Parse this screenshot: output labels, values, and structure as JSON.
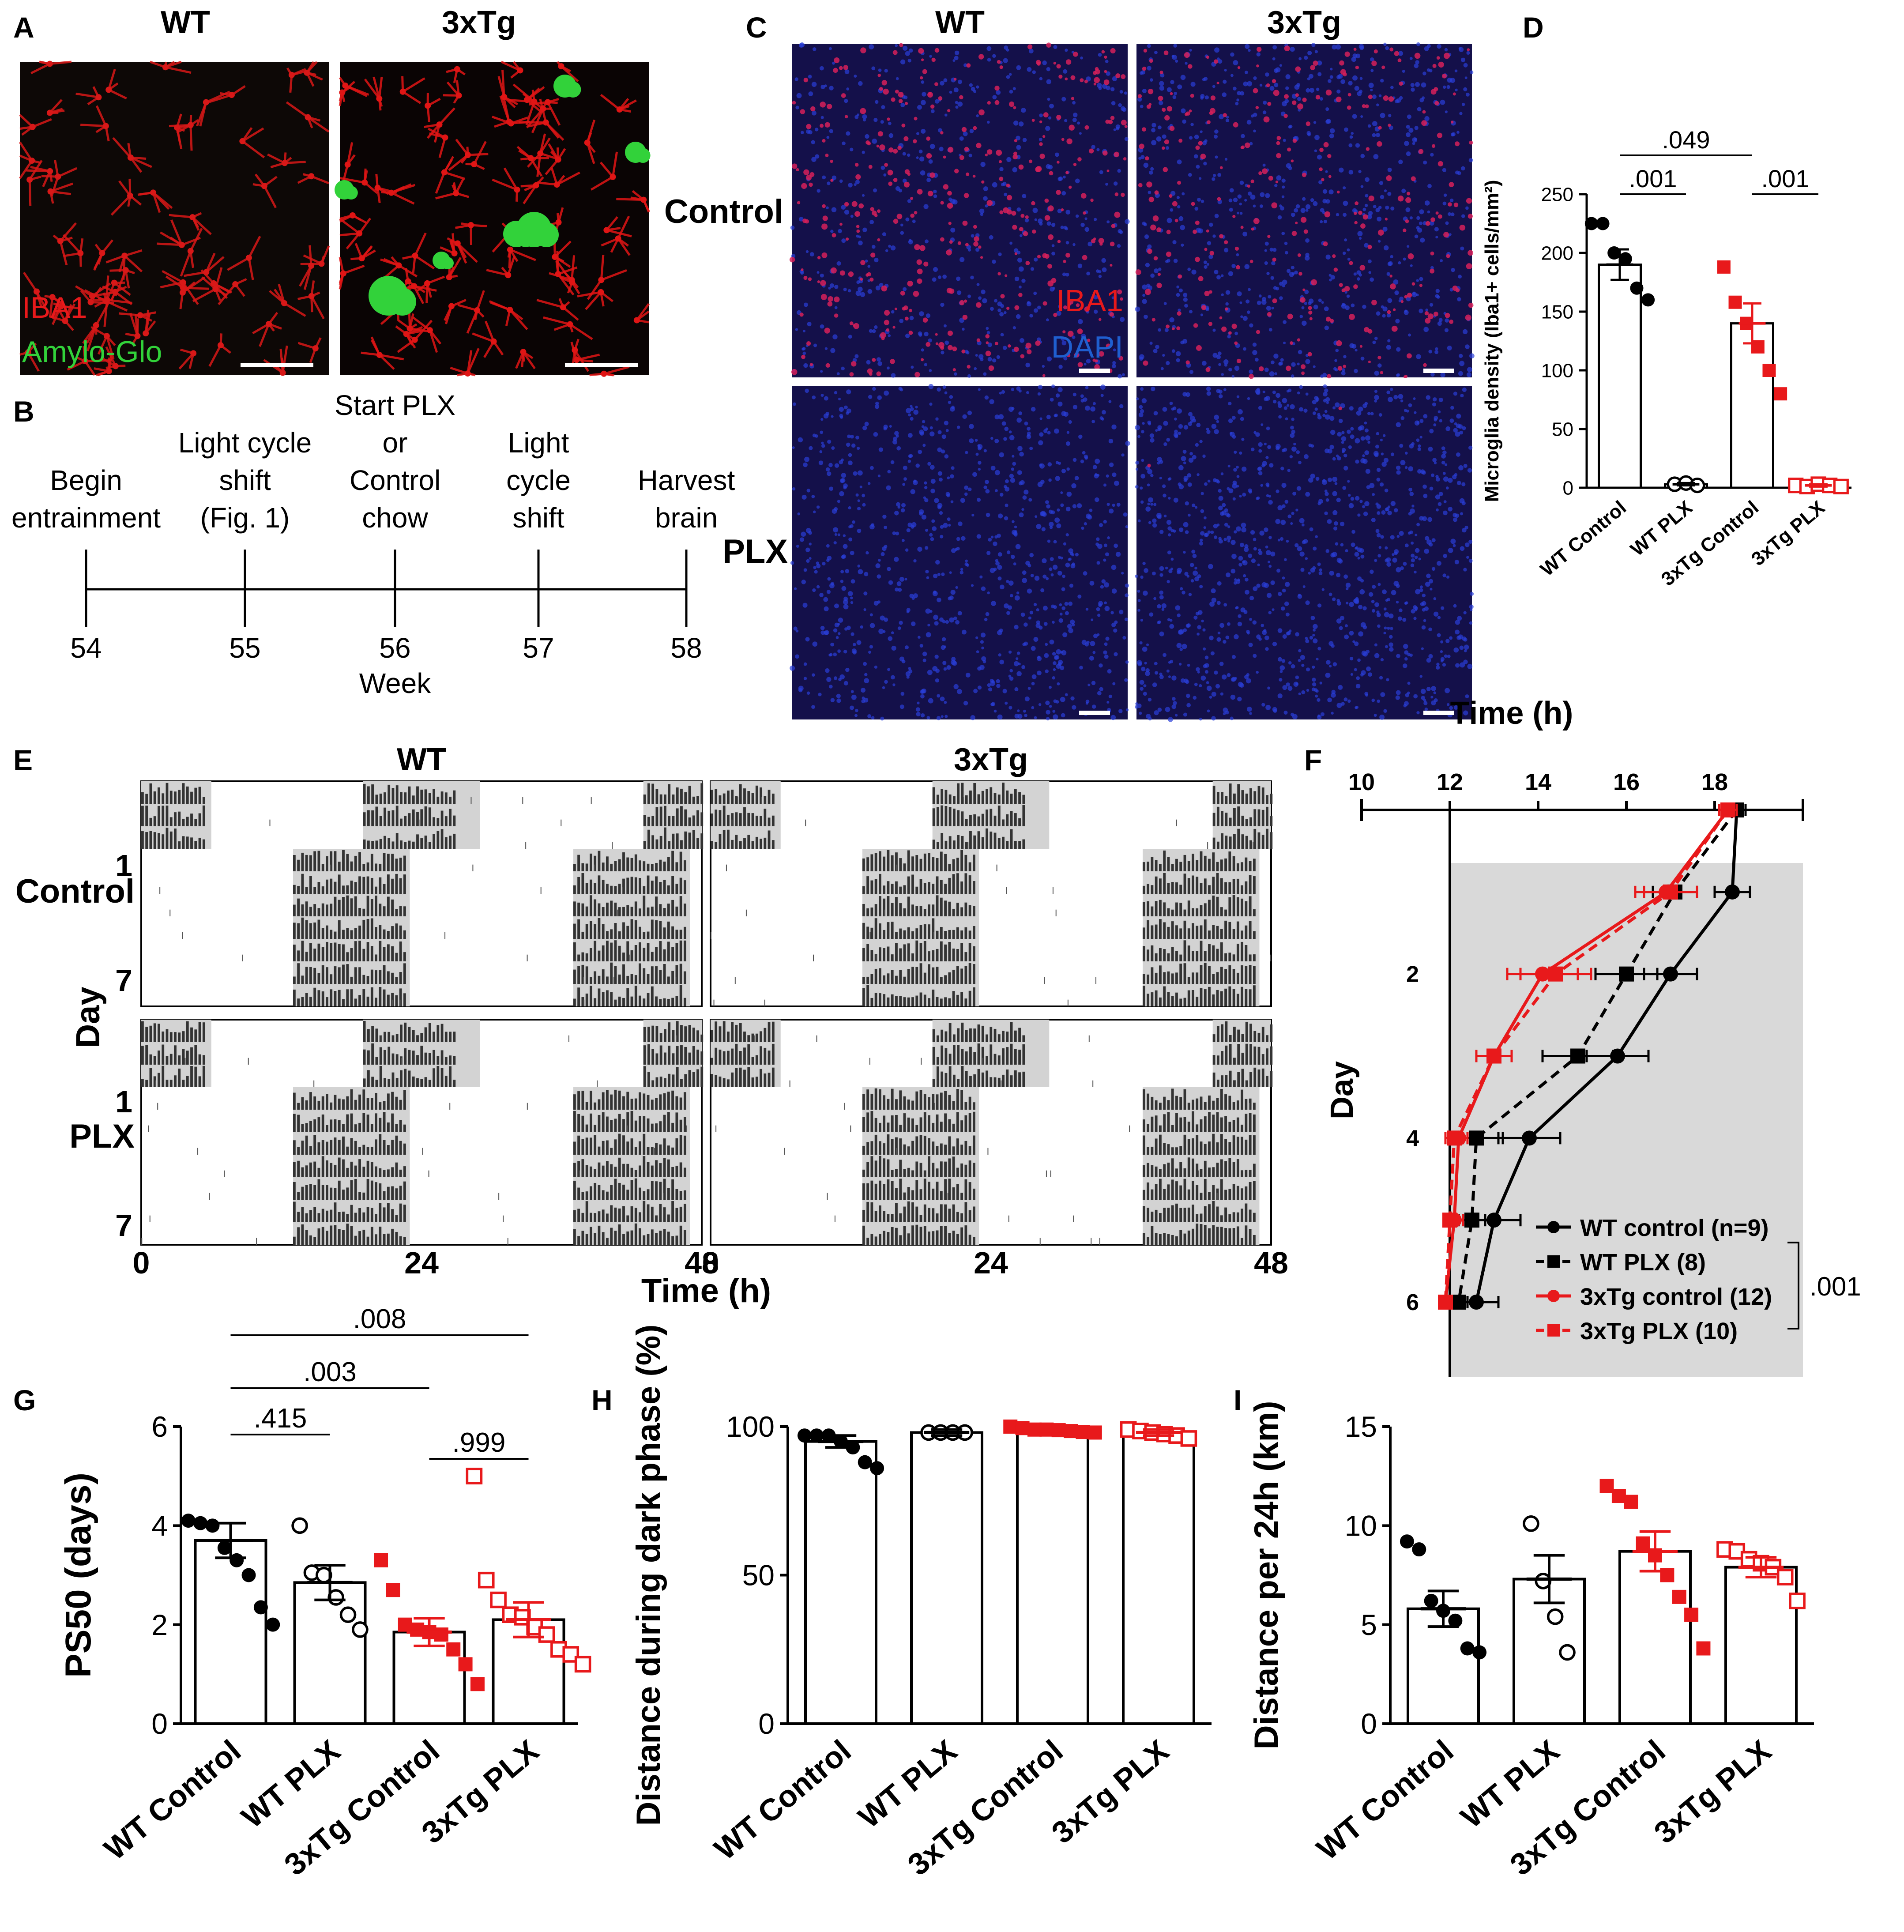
{
  "panel_letters": {
    "A": "A",
    "B": "B",
    "C": "C",
    "D": "D",
    "E": "E",
    "F": "F",
    "G": "G",
    "H": "H",
    "I": "I"
  },
  "colors": {
    "red": "#e8191b",
    "green": "#32d23a",
    "blue": "#1f5fd0",
    "gray": "#d3d3d3",
    "black": "#000000"
  },
  "panelA": {
    "col_wt": "WT",
    "col_3xtg": "3xTg",
    "legend_iba1": "IBA1",
    "legend_amylo": "Amylo-Glo"
  },
  "panelB": {
    "events": [
      {
        "week": "54",
        "label": [
          "Begin",
          "entrainment"
        ]
      },
      {
        "week": "55",
        "label": [
          "Light cycle",
          "shift",
          "(Fig. 1)"
        ]
      },
      {
        "week": "56",
        "label": [
          "Start PLX",
          "or",
          "Control",
          "chow"
        ]
      },
      {
        "week": "57",
        "label": [
          "Light",
          "cycle",
          "shift"
        ]
      },
      {
        "week": "58",
        "label": [
          "Harvest",
          "brain"
        ]
      }
    ],
    "axis_label": "Week"
  },
  "panelC": {
    "col_wt": "WT",
    "col_3xtg": "3xTg",
    "row_control": "Control",
    "row_plx": "PLX",
    "legend_iba1": "IBA1",
    "legend_dapi": "DAPI"
  },
  "panelE": {
    "col_wt": "WT",
    "col_3xtg": "3xTg",
    "row_control": "Control",
    "row_plx": "PLX",
    "ylabel": "Day",
    "day_start": "1",
    "day_end": "7",
    "xticks": [
      "0",
      "24",
      "48"
    ],
    "xlabel": "Time (h)"
  },
  "chart_data": [
    {
      "panel": "D",
      "type": "bar",
      "ylabel": "Microglia density (Iba1+ cells/mm²)",
      "ylim": [
        0,
        250
      ],
      "yticks": [
        0,
        50,
        100,
        150,
        200,
        250
      ],
      "categories": [
        "WT Control",
        "WT PLX",
        "3xTg Control",
        "3xTg PLX"
      ],
      "means": [
        190,
        3,
        140,
        2
      ],
      "sem": [
        13,
        1,
        17,
        1
      ],
      "points": [
        [
          225,
          225,
          200,
          195,
          170,
          160
        ],
        [
          3,
          4,
          2
        ],
        [
          188,
          158,
          140,
          120,
          100,
          80
        ],
        [
          2,
          1,
          3,
          2,
          1
        ]
      ],
      "colors": [
        "#000000",
        "#000000",
        "#e8191b",
        "#e8191b"
      ],
      "filled": [
        true,
        false,
        true,
        false
      ],
      "brackets": [
        {
          "label": ".049",
          "from": 0,
          "to": 2
        },
        {
          "label": ".001",
          "from": 0,
          "to": 1
        },
        {
          "label": ".001",
          "from": 2,
          "to": 3
        }
      ]
    },
    {
      "panel": "F",
      "type": "line",
      "xlabel": "Time (h)",
      "ylabel": "Day",
      "xlim": [
        10,
        20
      ],
      "xticks": [
        10,
        12,
        14,
        16,
        18
      ],
      "days": [
        0,
        1,
        2,
        3,
        4,
        5,
        6
      ],
      "yticks": [
        2,
        4,
        6
      ],
      "series": [
        {
          "name": "WT control (n=9)",
          "color": "#000000",
          "dash": false,
          "marker": "circle",
          "x": [
            18.5,
            18.4,
            17.0,
            15.8,
            13.8,
            13.0,
            12.6
          ],
          "err": [
            0.2,
            0.4,
            0.6,
            0.7,
            0.7,
            0.6,
            0.5
          ]
        },
        {
          "name": "WT PLX (8)",
          "color": "#000000",
          "dash": true,
          "marker": "square",
          "x": [
            18.5,
            17.1,
            16.0,
            14.9,
            12.6,
            12.5,
            12.2
          ],
          "err": [
            0.2,
            0.5,
            0.7,
            0.8,
            0.6,
            0.3,
            0.2
          ]
        },
        {
          "name": "3xTg control (12)",
          "color": "#e8191b",
          "dash": false,
          "marker": "circle",
          "x": [
            18.3,
            16.9,
            14.1,
            13.0,
            12.2,
            12.1,
            11.9
          ],
          "err": [
            0.2,
            0.7,
            0.8,
            0.4,
            0.2,
            0.2,
            0.1
          ]
        },
        {
          "name": "3xTg PLX (10)",
          "color": "#e8191b",
          "dash": true,
          "marker": "square",
          "x": [
            18.3,
            17.0,
            14.4,
            13.0,
            12.1,
            12.0,
            11.9
          ],
          "err": [
            0.2,
            0.6,
            0.8,
            0.4,
            0.2,
            0.1,
            0.1
          ]
        }
      ],
      "bracket_label": ".001"
    },
    {
      "panel": "G",
      "type": "bar",
      "ylabel": "PS50 (days)",
      "ylim": [
        0,
        6
      ],
      "yticks": [
        0,
        2,
        4,
        6
      ],
      "categories": [
        "WT Control",
        "WT PLX",
        "3xTg Control",
        "3xTg PLX"
      ],
      "means": [
        3.7,
        2.85,
        1.85,
        2.1
      ],
      "sem": [
        0.35,
        0.35,
        0.28,
        0.35
      ],
      "points": [
        [
          4.1,
          4.05,
          4.0,
          3.55,
          3.3,
          3.0,
          2.35,
          2.0
        ],
        [
          4.0,
          3.05,
          3.0,
          2.55,
          2.2,
          1.9
        ],
        [
          3.3,
          2.7,
          2.0,
          1.9,
          1.85,
          1.8,
          1.5,
          1.2,
          0.8
        ],
        [
          5.0,
          2.9,
          2.5,
          2.2,
          2.15,
          1.95,
          1.8,
          1.5,
          1.4,
          1.2
        ]
      ],
      "colors": [
        "#000000",
        "#000000",
        "#e8191b",
        "#e8191b"
      ],
      "filled": [
        true,
        false,
        true,
        false
      ],
      "brackets": [
        {
          "label": ".008",
          "from": 0,
          "to": 3
        },
        {
          "label": ".003",
          "from": 0,
          "to": 2
        },
        {
          "label": ".415",
          "from": 0,
          "to": 1
        },
        {
          "label": ".999",
          "from": 2,
          "to": 3
        }
      ]
    },
    {
      "panel": "H",
      "type": "bar",
      "ylabel": "Distance during dark phase (%)",
      "ylim": [
        0,
        100
      ],
      "yticks": [
        0,
        50,
        100
      ],
      "categories": [
        "WT Control",
        "WT PLX",
        "3xTg Control",
        "3xTg PLX"
      ],
      "means": [
        95,
        98,
        99,
        98
      ],
      "sem": [
        2,
        1,
        0.5,
        1
      ],
      "points": [
        [
          97,
          97,
          97,
          95,
          93,
          88,
          86
        ],
        [
          98,
          98,
          98,
          98
        ],
        [
          100,
          99.5,
          99,
          99,
          98.8,
          98.5,
          98.2,
          98
        ],
        [
          99,
          98.5,
          98,
          97.5,
          97,
          96
        ]
      ],
      "colors": [
        "#000000",
        "#000000",
        "#e8191b",
        "#e8191b"
      ],
      "filled": [
        true,
        false,
        true,
        false
      ],
      "brackets": []
    },
    {
      "panel": "I",
      "type": "bar",
      "ylabel": "Distance per 24h (km)",
      "ylim": [
        0,
        15
      ],
      "yticks": [
        0,
        5,
        10,
        15
      ],
      "categories": [
        "WT Control",
        "WT PLX",
        "3xTg Control",
        "3xTg PLX"
      ],
      "means": [
        5.8,
        7.3,
        8.7,
        7.9
      ],
      "sem": [
        0.9,
        1.2,
        1.0,
        0.5
      ],
      "points": [
        [
          9.2,
          8.8,
          6.2,
          5.7,
          5.2,
          3.8,
          3.6
        ],
        [
          10.1,
          7.2,
          5.4,
          3.6
        ],
        [
          12.0,
          11.5,
          11.2,
          9.1,
          8.5,
          7.5,
          6.4,
          5.5,
          3.8
        ],
        [
          8.8,
          8.7,
          8.3,
          8.1,
          7.9,
          7.4,
          6.2
        ]
      ],
      "colors": [
        "#000000",
        "#000000",
        "#e8191b",
        "#e8191b"
      ],
      "filled": [
        true,
        false,
        true,
        false
      ],
      "brackets": []
    }
  ]
}
